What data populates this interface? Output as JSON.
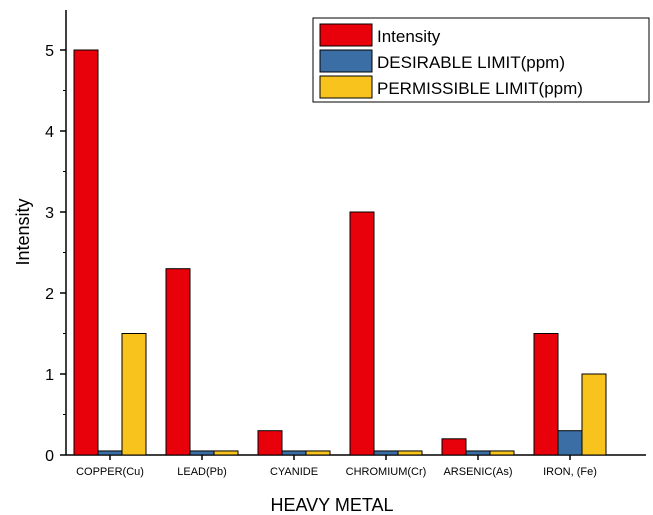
{
  "chart_data": {
    "type": "bar",
    "title": "",
    "xlabel": "HEAVY METAL",
    "ylabel": "Intensity",
    "ylim": [
      0,
      5.5
    ],
    "yticks": [
      0,
      1,
      2,
      3,
      4,
      5
    ],
    "categories": [
      "COPPER(Cu)",
      "LEAD(Pb)",
      "CYANIDE",
      "CHROMIUM(Cr)",
      "ARSENIC(As)",
      "IRON, (Fe)"
    ],
    "series": [
      {
        "name": "Intensity",
        "color": "#e8000b",
        "values": [
          5.0,
          2.3,
          0.3,
          3.0,
          0.2,
          1.5
        ]
      },
      {
        "name": "DESIRABLE LIMIT(ppm)",
        "color": "#3b6ea5",
        "values": [
          0.05,
          0.05,
          0.05,
          0.05,
          0.05,
          0.3
        ]
      },
      {
        "name": "PERMISSIBLE LIMIT(ppm)",
        "color": "#f7c31c",
        "values": [
          1.5,
          0.05,
          0.05,
          0.05,
          0.05,
          1.0
        ]
      }
    ],
    "legend_position": "top-right",
    "grid": false
  }
}
